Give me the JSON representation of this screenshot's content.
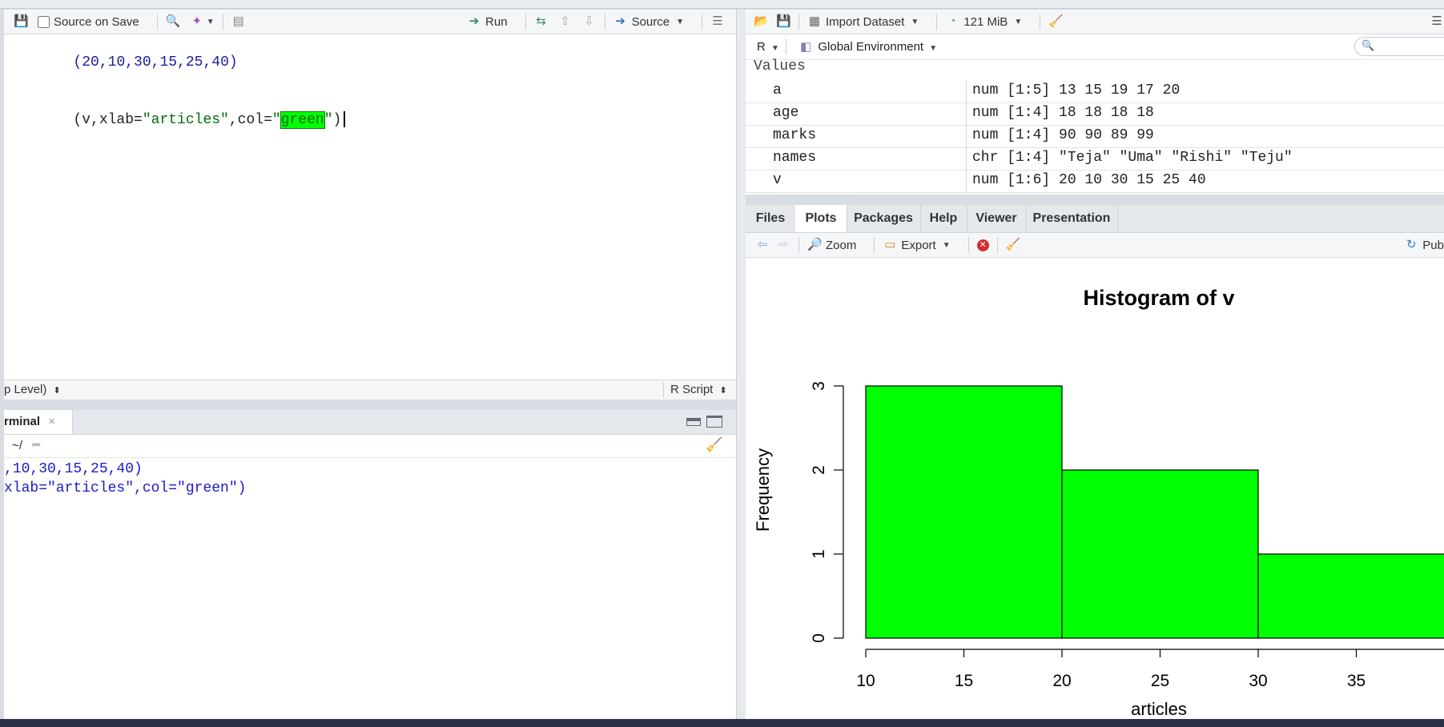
{
  "editor": {
    "toolbar": {
      "source_on_save": "Source on Save",
      "run": "Run",
      "source": "Source"
    },
    "code_lines": [
      {
        "p1": "(",
        "nums": "20,10,30,15,25,40",
        "p2": ")"
      },
      {
        "a": "(v,xlab=",
        "s1": "\"articles\"",
        "b": ",col=",
        "q1": "\"",
        "hl": "green",
        "q2": "\"",
        "c": ")"
      }
    ],
    "status_left": "p Level)",
    "status_right": "R Script"
  },
  "console": {
    "tab_label": "rminal",
    "tab_close": "×",
    "path": "~/",
    "lines": [
      ",10,30,15,25,40)",
      "xlab=\"articles\",col=\"green\")"
    ]
  },
  "environment": {
    "toolbar": {
      "import_dataset": "Import Dataset",
      "memory": "121 MiB"
    },
    "language": "R",
    "scope": "Global Environment",
    "section_header": "Values",
    "rows": [
      {
        "name": "a",
        "value": "num [1:5] 13 15 19 17 20"
      },
      {
        "name": "age",
        "value": "num [1:4] 18 18 18 18"
      },
      {
        "name": "marks",
        "value": "num [1:4] 90 90 89 99"
      },
      {
        "name": "names",
        "value": "chr [1:4] \"Teja\" \"Uma\" \"Rishi\" \"Teju\""
      },
      {
        "name": "v",
        "value": "num [1:6] 20 10 30 15 25 40"
      }
    ]
  },
  "plots_pane": {
    "tabs": [
      "Files",
      "Plots",
      "Packages",
      "Help",
      "Viewer",
      "Presentation"
    ],
    "active_tab": "Plots",
    "toolbar": {
      "zoom": "Zoom",
      "export": "Export",
      "publish": "Pub"
    }
  },
  "chart_data": {
    "type": "bar",
    "title": "Histogram of v",
    "xlabel": "articles",
    "ylabel": "Frequency",
    "bins": [
      [
        10,
        20
      ],
      [
        20,
        30
      ],
      [
        30,
        40
      ]
    ],
    "values": [
      3,
      2,
      1
    ],
    "bar_color": "#00ff00",
    "xticks": [
      "10",
      "15",
      "20",
      "25",
      "30",
      "35"
    ],
    "yticks": [
      "0",
      "1",
      "2",
      "3"
    ],
    "xlim": [
      10,
      40
    ],
    "ylim": [
      0,
      3
    ]
  }
}
